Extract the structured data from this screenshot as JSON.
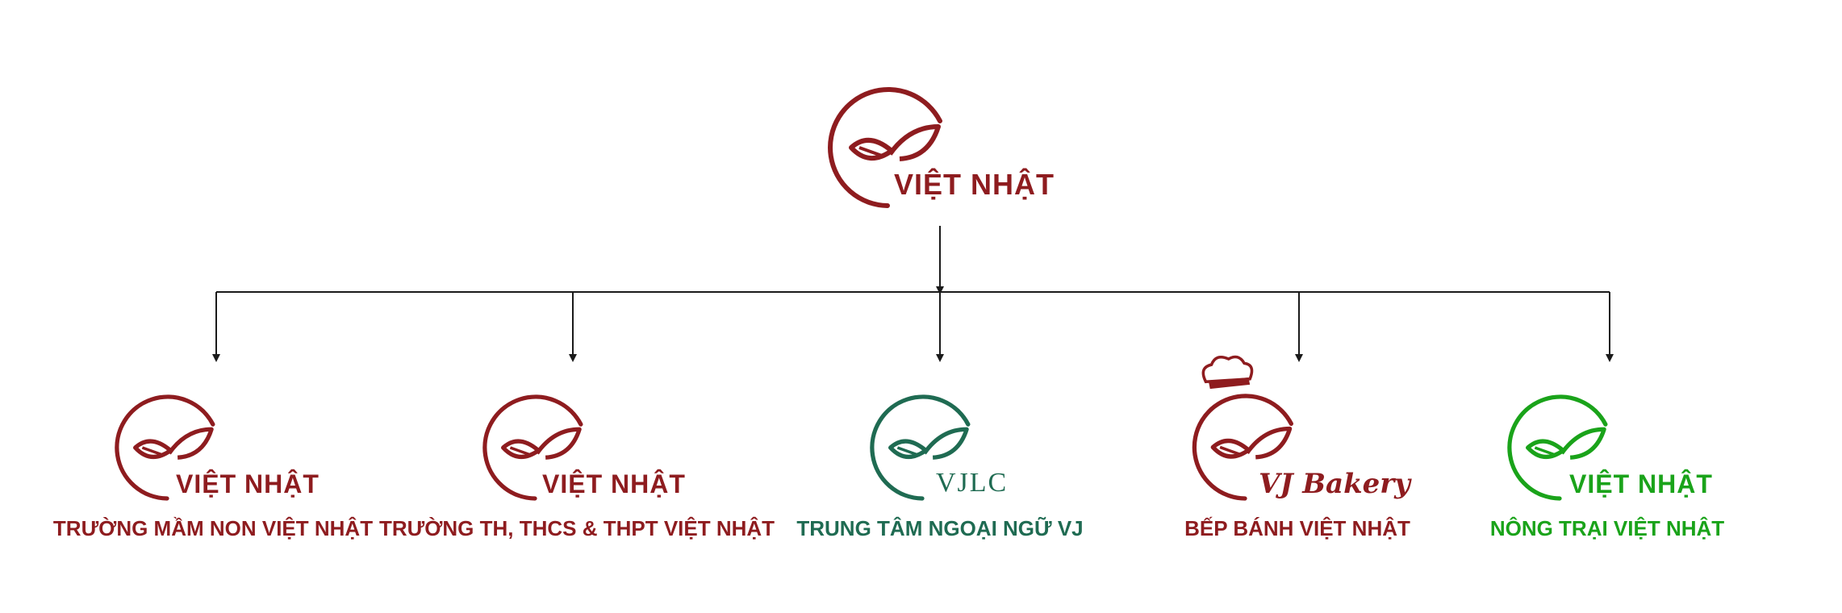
{
  "colors": {
    "maroon": "#8e1c1f",
    "teal": "#1f6b52",
    "green": "#1aa31a",
    "line": "#1a1a1a"
  },
  "root": {
    "wordmark": "VIỆT NHẬT",
    "icon": "leaf-swoosh-logo-icon"
  },
  "units": [
    {
      "wordmark": "VIỆT NHẬT",
      "title": "TRƯỜNG MẦM NON VIỆT NHẬT",
      "color": "maroon",
      "icon": "leaf-swoosh-logo-icon"
    },
    {
      "wordmark": "VIỆT NHẬT",
      "title": "TRƯỜNG TH, THCS & THPT VIỆT NHẬT",
      "color": "maroon",
      "icon": "leaf-swoosh-logo-icon"
    },
    {
      "wordmark": "VJLC",
      "title": "TRUNG TÂM NGOẠI NGỮ VJ",
      "color": "teal",
      "icon": "leaf-swoosh-logo-icon"
    },
    {
      "wordmark": "VJ Bakery",
      "title": "BẾP BÁNH VIỆT NHẬT",
      "color": "maroon",
      "icon": "chef-hat-icon"
    },
    {
      "wordmark": "VIỆT NHẬT",
      "title": "NÔNG TRẠI VIỆT NHẬT",
      "color": "green",
      "icon": "leaf-swoosh-logo-icon"
    }
  ]
}
